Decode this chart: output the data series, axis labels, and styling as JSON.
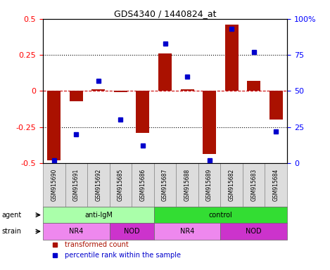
{
  "title": "GDS4340 / 1440824_at",
  "samples": [
    "GSM915690",
    "GSM915691",
    "GSM915692",
    "GSM915685",
    "GSM915686",
    "GSM915687",
    "GSM915688",
    "GSM915689",
    "GSM915682",
    "GSM915683",
    "GSM915684"
  ],
  "transformed_count": [
    -0.48,
    -0.07,
    0.01,
    -0.01,
    -0.29,
    0.26,
    0.01,
    -0.44,
    0.46,
    0.07,
    -0.2
  ],
  "percentile_rank": [
    2,
    20,
    57,
    30,
    12,
    83,
    60,
    2,
    93,
    77,
    22
  ],
  "ylim_left": [
    -0.5,
    0.5
  ],
  "ylim_right": [
    0,
    100
  ],
  "yticks_left": [
    -0.5,
    -0.25,
    0,
    0.25,
    0.5
  ],
  "yticks_right": [
    0,
    25,
    50,
    75,
    100
  ],
  "bar_color": "#AA1100",
  "dot_color": "#0000CC",
  "agent_groups": [
    {
      "label": "anti-IgM",
      "start": 0,
      "end": 5,
      "color": "#AAFFAA"
    },
    {
      "label": "control",
      "start": 5,
      "end": 11,
      "color": "#33DD33"
    }
  ],
  "strain_groups": [
    {
      "label": "NR4",
      "start": 0,
      "end": 3,
      "color": "#EE88EE"
    },
    {
      "label": "NOD",
      "start": 3,
      "end": 5,
      "color": "#CC33CC"
    },
    {
      "label": "NR4",
      "start": 5,
      "end": 8,
      "color": "#EE88EE"
    },
    {
      "label": "NOD",
      "start": 8,
      "end": 11,
      "color": "#CC33CC"
    }
  ],
  "legend_items": [
    {
      "label": "transformed count",
      "color": "#AA1100",
      "marker": "s"
    },
    {
      "label": "percentile rank within the sample",
      "color": "#0000CC",
      "marker": "s"
    }
  ],
  "dotted_lines": [
    -0.25,
    0.25
  ],
  "zero_line_color": "#CC0000",
  "label_bg_color": "#DDDDDD",
  "label_border_color": "#888888"
}
